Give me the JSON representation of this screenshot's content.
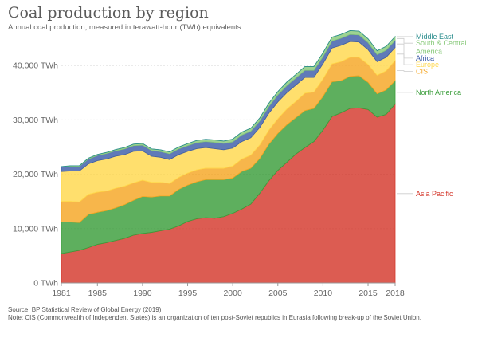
{
  "title": "Coal production by region",
  "subtitle": "Annual coal production, measured in terawatt-hour (TWh) equivalents.",
  "source": "Source: BP Statistical Review of Global Energy (2019)",
  "note": "Note: CIS (Commonwealth of Independent States) is an organization of ten post-Soviet republics in Eurasia following break-up of the Soviet Union.",
  "chart_data": {
    "type": "area",
    "stacked": true,
    "x_range": [
      1981,
      2018
    ],
    "ylim": [
      0,
      45000
    ],
    "x_ticks": [
      {
        "value": 1981,
        "label": "1981"
      },
      {
        "value": 1985,
        "label": "1985"
      },
      {
        "value": 1990,
        "label": "1990"
      },
      {
        "value": 1995,
        "label": "1995"
      },
      {
        "value": 2000,
        "label": "2000"
      },
      {
        "value": 2005,
        "label": "2005"
      },
      {
        "value": 2010,
        "label": "2010"
      },
      {
        "value": 2015,
        "label": "2015"
      },
      {
        "value": 2018,
        "label": "2018"
      }
    ],
    "y_ticks": [
      {
        "value": 0,
        "label": "0 TWh"
      },
      {
        "value": 10000,
        "label": "10,000 TWh"
      },
      {
        "value": 20000,
        "label": "20,000 TWh"
      },
      {
        "value": 30000,
        "label": "30,000 TWh"
      },
      {
        "value": 40000,
        "label": "40,000 TWh"
      }
    ],
    "grid": "horizontal dotted",
    "legend": "right, inline labels",
    "x": [
      1981,
      1982,
      1983,
      1984,
      1985,
      1986,
      1987,
      1988,
      1989,
      1990,
      1991,
      1992,
      1993,
      1994,
      1995,
      1996,
      1997,
      1998,
      1999,
      2000,
      2001,
      2002,
      2003,
      2004,
      2005,
      2006,
      2007,
      2008,
      2009,
      2010,
      2011,
      2012,
      2013,
      2014,
      2015,
      2016,
      2017,
      2018
    ],
    "series": [
      {
        "name": "Asia Pacific",
        "color": "#d4382c",
        "values": [
          5400,
          5700,
          6000,
          6500,
          7100,
          7400,
          7800,
          8200,
          8800,
          9100,
          9300,
          9600,
          9900,
          10500,
          11300,
          11800,
          12000,
          11900,
          12200,
          12800,
          13600,
          14500,
          16500,
          18800,
          20700,
          22200,
          23700,
          24900,
          26000,
          28100,
          30600,
          31300,
          32100,
          32200,
          31900,
          30500,
          31000,
          32900
        ]
      },
      {
        "name": "North America",
        "color": "#3b9d3b",
        "values": [
          5800,
          5500,
          5100,
          6100,
          5900,
          5900,
          6000,
          6200,
          6400,
          6800,
          6500,
          6400,
          6100,
          6700,
          6700,
          6800,
          7000,
          7100,
          6800,
          6500,
          6900,
          6600,
          6400,
          6700,
          6800,
          6900,
          6700,
          6800,
          6100,
          6200,
          6400,
          5900,
          5900,
          5900,
          5000,
          4300,
          4500,
          4300
        ]
      },
      {
        "name": "CIS",
        "color": "#f5a623",
        "values": [
          3800,
          3800,
          3800,
          3700,
          3700,
          3600,
          3600,
          3400,
          3200,
          3000,
          2700,
          2500,
          2300,
          2200,
          2200,
          2200,
          2100,
          2100,
          2100,
          2200,
          2300,
          2400,
          2500,
          2600,
          2700,
          2900,
          3000,
          3200,
          3000,
          3200,
          3300,
          3500,
          3500,
          3400,
          3300,
          3400,
          3500,
          3700
        ]
      },
      {
        "name": "Europe",
        "color": "#ffd84d",
        "values": [
          5500,
          5600,
          5700,
          5600,
          5800,
          5900,
          5900,
          5800,
          5800,
          5400,
          4800,
          4600,
          4400,
          4200,
          4000,
          3900,
          3800,
          3600,
          3400,
          3300,
          3200,
          3200,
          3200,
          3100,
          3100,
          3000,
          3000,
          2900,
          2700,
          2800,
          2900,
          3000,
          2900,
          2800,
          2700,
          2500,
          2500,
          2400
        ]
      },
      {
        "name": "Africa",
        "color": "#3d5da8",
        "values": [
          800,
          850,
          850,
          900,
          950,
          1000,
          1000,
          1050,
          1050,
          1050,
          1050,
          1050,
          1050,
          1050,
          1050,
          1100,
          1100,
          1150,
          1150,
          1150,
          1200,
          1200,
          1200,
          1250,
          1300,
          1300,
          1300,
          1300,
          1300,
          1300,
          1300,
          1300,
          1300,
          1300,
          1300,
          1300,
          1300,
          1300
        ]
      },
      {
        "name": "South & Central America",
        "color": "#88c97a",
        "values": [
          100,
          100,
          120,
          150,
          180,
          200,
          220,
          250,
          280,
          300,
          300,
          330,
          350,
          350,
          380,
          400,
          420,
          450,
          450,
          500,
          550,
          550,
          550,
          600,
          600,
          650,
          650,
          700,
          700,
          700,
          700,
          700,
          700,
          700,
          700,
          700,
          700,
          700
        ]
      },
      {
        "name": "Middle East",
        "color": "#2a8d8d",
        "values": [
          10,
          10,
          10,
          10,
          10,
          10,
          10,
          10,
          10,
          10,
          10,
          10,
          10,
          10,
          10,
          10,
          10,
          10,
          10,
          10,
          10,
          10,
          10,
          10,
          10,
          10,
          10,
          10,
          10,
          10,
          10,
          10,
          10,
          10,
          10,
          10,
          10,
          10
        ]
      }
    ]
  }
}
